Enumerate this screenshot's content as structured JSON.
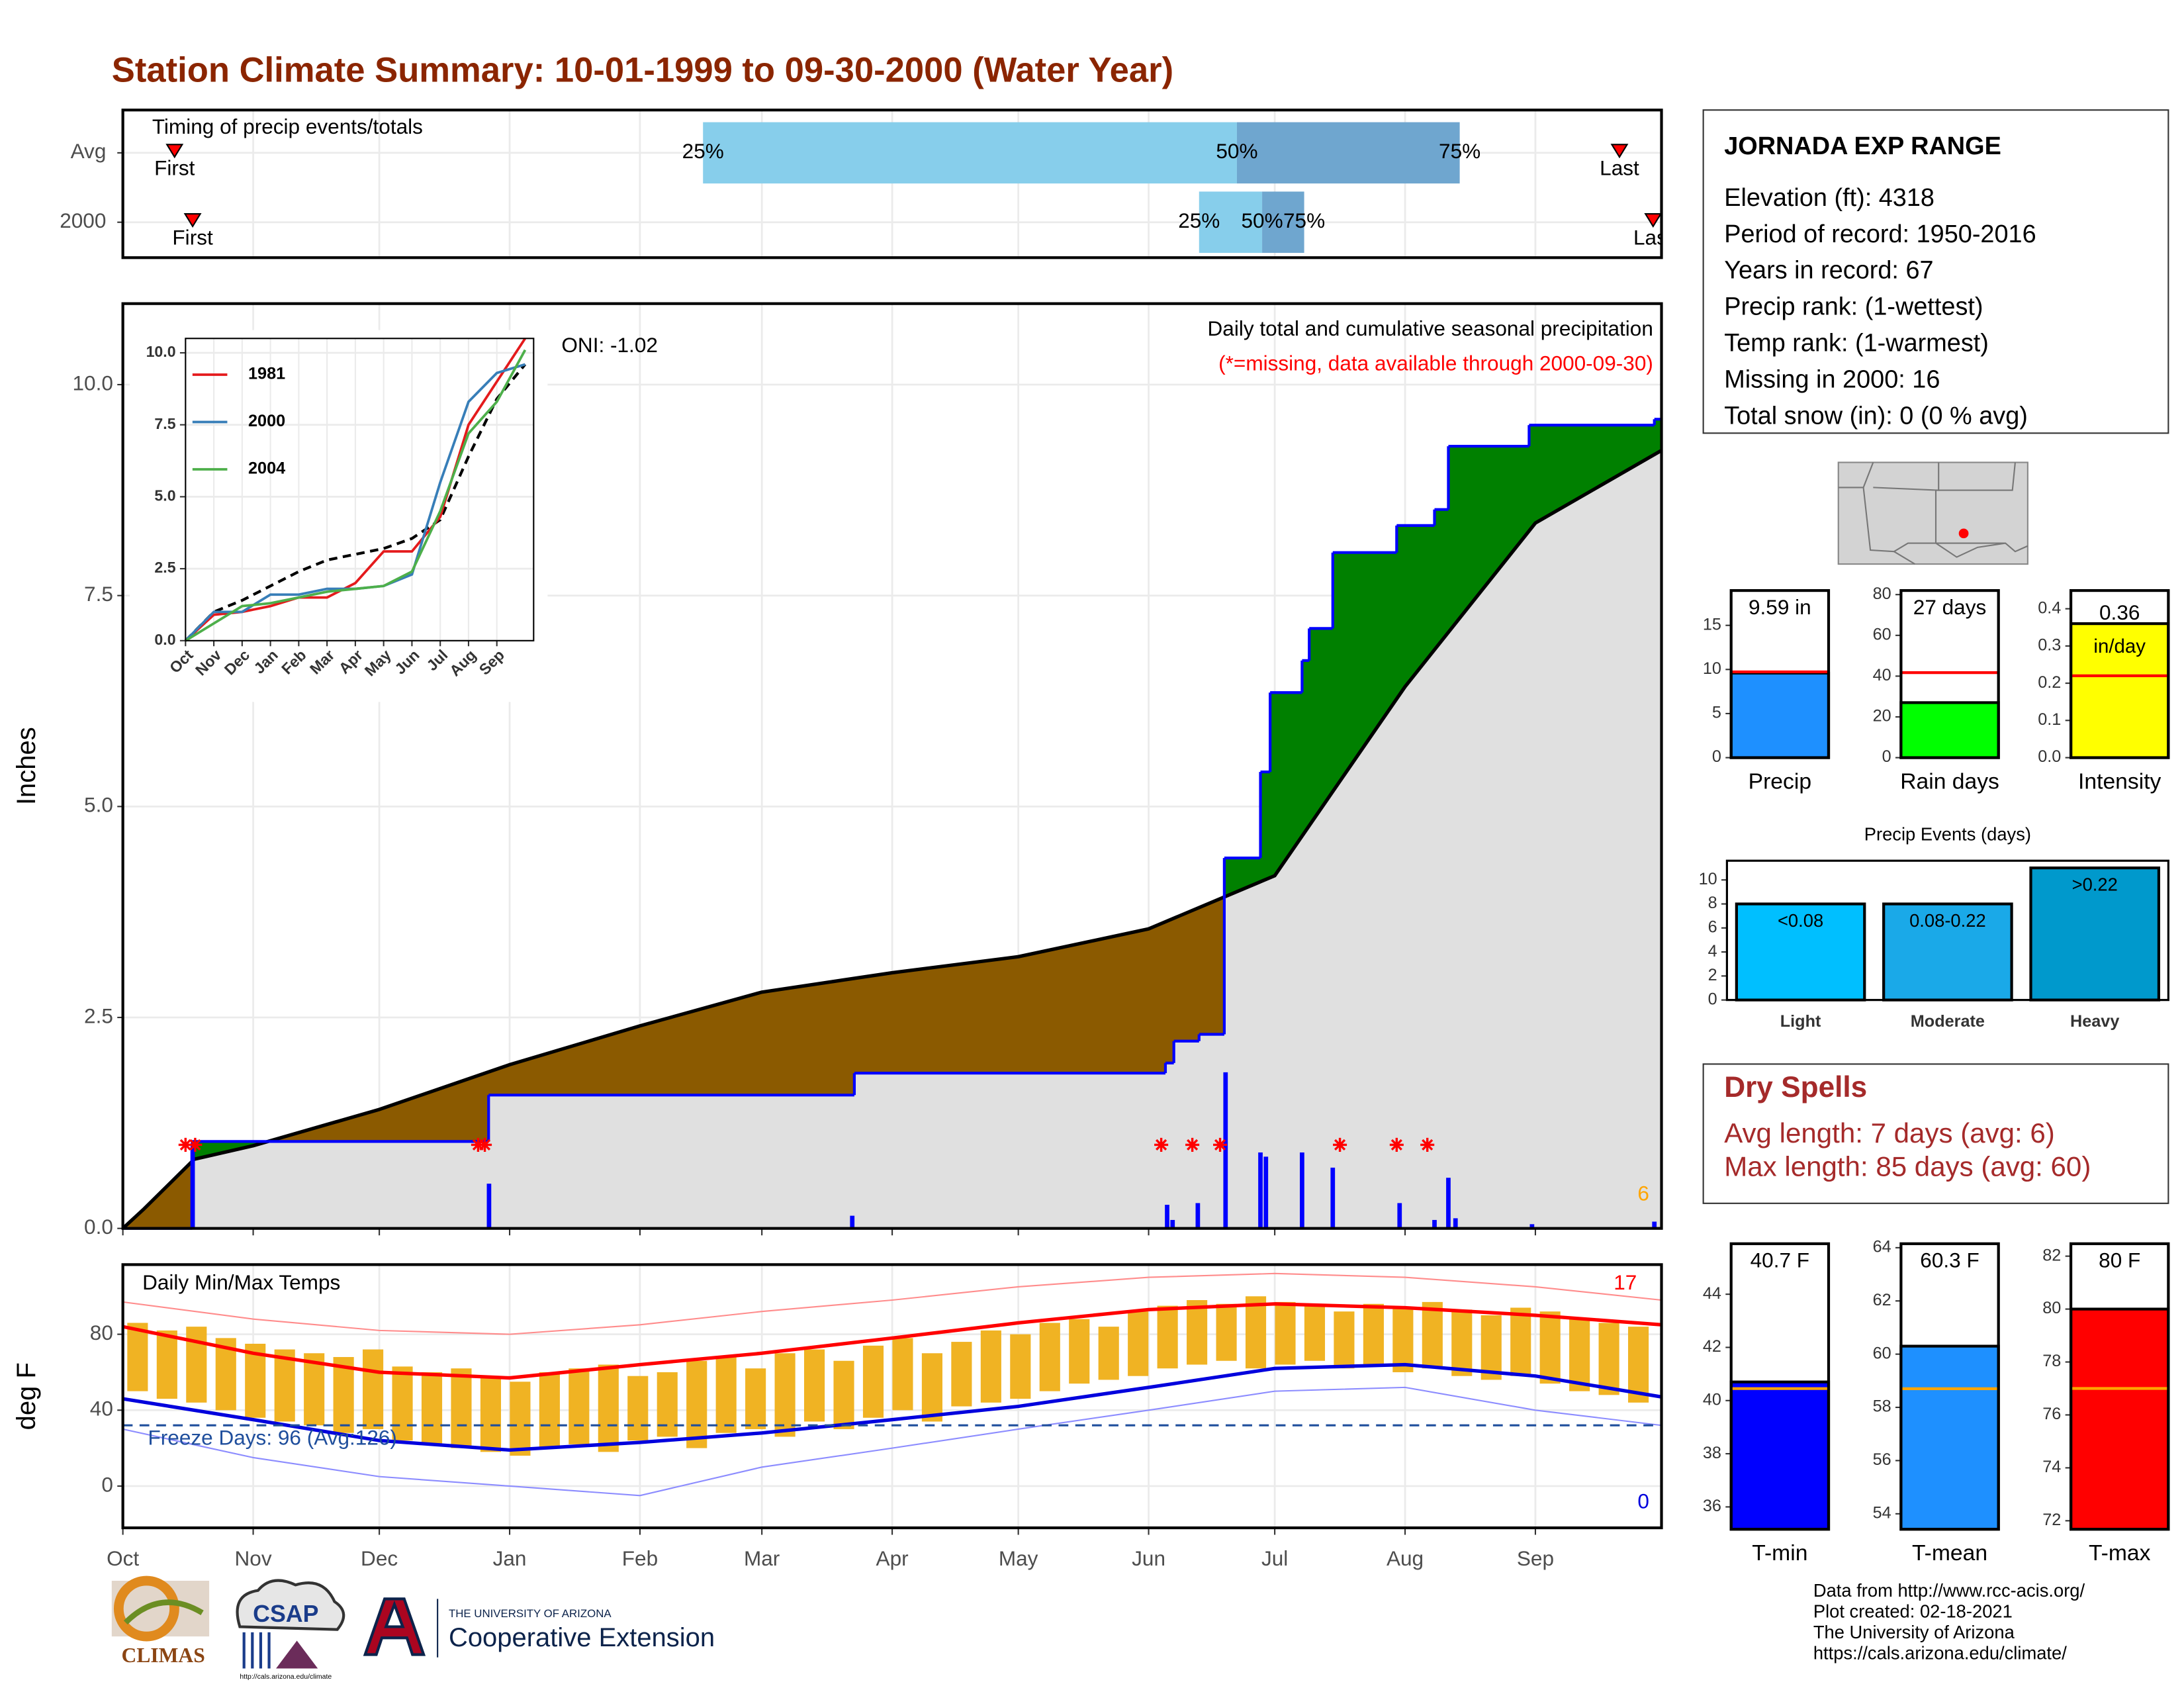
{
  "title": "Station Climate Summary: 10-01-1999 to 09-30-2000 (Water Year)",
  "chart_data": [
    {
      "type": "timing",
      "title": "Timing of precip events/totals",
      "categories": [
        "Avg",
        "2000"
      ],
      "first": [
        12.3,
        16.6
      ],
      "first_label": "First",
      "last": [
        356,
        364
      ],
      "last_label": "Last",
      "q25": [
        138,
        256
      ],
      "q50": [
        265,
        271
      ],
      "q75": [
        318,
        281
      ],
      "quantile_labels": [
        "25%",
        "50%",
        "75%"
      ],
      "colors": [
        "#87ceeb",
        "#6fa6cf"
      ],
      "marker_color": "#ff0000",
      "xlim": [
        0,
        366
      ],
      "xticks": [
        0,
        31,
        61,
        92,
        123,
        152,
        183,
        213,
        244,
        274,
        305,
        336
      ],
      "grid": true
    },
    {
      "type": "precip",
      "title": "Daily total and cumulative seasonal precipitation",
      "subtitle": "(*=missing, data available through 2000-09-30)",
      "annotation": "ONI: -1.02",
      "count_label": 6,
      "ylabel": "Inches",
      "xlim": [
        0,
        366
      ],
      "ylim": [
        0,
        10.96
      ],
      "yticks": [
        {
          "value": 0,
          "label": "0.0"
        },
        {
          "value": 2.5,
          "label": "2.5"
        },
        {
          "value": 5,
          "label": "5.0"
        },
        {
          "value": 7.5,
          "label": "7.5"
        },
        {
          "value": 10,
          "label": "10.0"
        }
      ],
      "xticks": [
        0,
        31,
        61,
        92,
        123,
        152,
        183,
        213,
        244,
        274,
        305,
        336
      ],
      "grid": true,
      "cumulative": {
        "color": "#0000ff",
        "x": [
          0,
          16.5,
          87,
          174,
          248,
          250,
          256,
          262,
          270.6,
          272.9,
          280.5,
          282.2,
          287.8,
          303,
          312,
          315.3,
          334.5,
          364.3
        ],
        "values": [
          0,
          1.03,
          1.58,
          1.84,
          1.96,
          2.22,
          2.3,
          4.39,
          5.41,
          6.35,
          6.73,
          7.11,
          8.01,
          8.33,
          8.52,
          9.27,
          9.52,
          9.59
        ]
      },
      "average": {
        "color": "#000000",
        "x": [
          0,
          5,
          17,
          31,
          61,
          92,
          123,
          152,
          183,
          213,
          244,
          274,
          305,
          336,
          366
        ],
        "values": [
          0,
          0.23,
          0.82,
          0.98,
          1.41,
          1.94,
          2.4,
          2.8,
          3.03,
          3.22,
          3.55,
          4.18,
          6.42,
          8.36,
          9.22
        ]
      },
      "daily": {
        "color": "#0000ff",
        "x": [
          16.6,
          87.1,
          173.5,
          248.4,
          249.7,
          255.7,
          262.3,
          270.6,
          271.9,
          280.5,
          287.8,
          303.7,
          312,
          315.3,
          317,
          335.2,
          364.3
        ],
        "values": [
          0.97,
          0.53,
          0.15,
          0.28,
          0.1,
          0.3,
          1.85,
          0.9,
          0.85,
          0.9,
          0.72,
          0.3,
          0.1,
          0.6,
          0.12,
          0.05,
          0.08
        ]
      },
      "missing_days": [
        14.9,
        17.2,
        84.5,
        86.1,
        247,
        254.4,
        261,
        289.5,
        303,
        310.3
      ],
      "colors": {
        "above": "#008000",
        "below": "#8b5a00",
        "base": "#e0e0e0",
        "missing": "#ff0000",
        "count": "#ffa500"
      }
    },
    {
      "type": "line",
      "x": [
        0,
        1,
        2,
        3,
        4,
        5,
        6,
        7,
        8,
        9,
        10,
        11,
        12
      ],
      "xlim": [
        0,
        12.3
      ],
      "ylim": [
        0,
        10.5
      ],
      "yticks": [
        {
          "value": 0,
          "label": "0.0"
        },
        {
          "value": 2.5,
          "label": "2.5"
        },
        {
          "value": 5,
          "label": "5.0"
        },
        {
          "value": 7.5,
          "label": "7.5"
        },
        {
          "value": 10,
          "label": "10.0"
        }
      ],
      "xticks": [
        {
          "value": 0,
          "label": "Oct"
        },
        {
          "value": 1,
          "label": "Nov"
        },
        {
          "value": 2,
          "label": "Dec"
        },
        {
          "value": 3,
          "label": "Jan"
        },
        {
          "value": 4,
          "label": "Feb"
        },
        {
          "value": 5,
          "label": "Mar"
        },
        {
          "value": 6,
          "label": "Apr"
        },
        {
          "value": 7,
          "label": "May"
        },
        {
          "value": 8,
          "label": "Jun"
        },
        {
          "value": 9,
          "label": "Jul"
        },
        {
          "value": 10,
          "label": "Aug"
        },
        {
          "value": 11,
          "label": "Sep"
        }
      ],
      "series": [
        {
          "name": "1981",
          "color": "#e41a1c",
          "values": [
            0,
            0.9,
            1.0,
            1.2,
            1.5,
            1.5,
            2.0,
            3.1,
            3.1,
            4.3,
            7.5,
            9.0,
            10.5
          ]
        },
        {
          "name": "2000",
          "color": "#377eb8",
          "values": [
            0,
            1.0,
            1.0,
            1.6,
            1.6,
            1.8,
            1.8,
            1.9,
            2.3,
            5.5,
            8.3,
            9.3,
            9.6
          ]
        },
        {
          "name": "2004",
          "color": "#4daf4a",
          "values": [
            0,
            0.6,
            1.2,
            1.3,
            1.5,
            1.7,
            1.8,
            1.9,
            2.4,
            4.5,
            7.2,
            8.3,
            10.1
          ]
        }
      ],
      "average": {
        "color": "#000000",
        "values": [
          0,
          1.0,
          1.4,
          1.9,
          2.4,
          2.8,
          3.0,
          3.2,
          3.55,
          4.2,
          6.4,
          8.4,
          9.6
        ]
      }
    },
    {
      "type": "temps",
      "title": "Daily Min/Max Temps",
      "ylabel": "deg F",
      "xlim": [
        0,
        366
      ],
      "ylim": [
        -22,
        116.7
      ],
      "yticks": [
        0,
        40,
        80
      ],
      "grid": true,
      "xticks": [
        {
          "value": 0,
          "label": "Oct"
        },
        {
          "value": 31,
          "label": "Nov"
        },
        {
          "value": 61,
          "label": "Dec"
        },
        {
          "value": 92,
          "label": "Jan"
        },
        {
          "value": 123,
          "label": "Feb"
        },
        {
          "value": 152,
          "label": "Mar"
        },
        {
          "value": 183,
          "label": "Apr"
        },
        {
          "value": 213,
          "label": "May"
        },
        {
          "value": 244,
          "label": "Jun"
        },
        {
          "value": 274,
          "label": "Jul"
        },
        {
          "value": 305,
          "label": "Aug"
        },
        {
          "value": 336,
          "label": "Sep"
        }
      ],
      "daily": {
        "color": "#f0b323",
        "x": [
          3.5,
          10.5,
          17.5,
          24.5,
          31.5,
          38.5,
          45.5,
          52.5,
          59.5,
          66.5,
          73.5,
          80.5,
          87.5,
          94.5,
          101.5,
          108.5,
          115.5,
          122.5,
          129.5,
          136.5,
          143.5,
          150.5,
          157.5,
          164.5,
          171.5,
          178.5,
          185.5,
          192.5,
          199.5,
          206.5,
          213.5,
          220.5,
          227.5,
          234.5,
          241.5,
          248.5,
          255.5,
          262.5,
          269.5,
          276.5,
          283.5,
          290.5,
          297.5,
          304.5,
          311.5,
          318.5,
          325.5,
          332.5,
          339.5,
          346.5,
          353.5,
          360.5
        ],
        "max": [
          86,
          82,
          84,
          78,
          75,
          72,
          70,
          68,
          72,
          63,
          60,
          62,
          58,
          55,
          60,
          62,
          64,
          58,
          60,
          66,
          68,
          62,
          70,
          72,
          66,
          74,
          78,
          70,
          76,
          82,
          80,
          86,
          88,
          84,
          92,
          95,
          98,
          96,
          100,
          97,
          95,
          92,
          96,
          94,
          97,
          93,
          90,
          94,
          92,
          88,
          86,
          84
        ],
        "min": [
          50,
          46,
          44,
          40,
          36,
          34,
          32,
          28,
          30,
          24,
          22,
          20,
          18,
          16,
          20,
          22,
          18,
          24,
          26,
          20,
          28,
          30,
          26,
          34,
          30,
          36,
          40,
          34,
          42,
          44,
          46,
          50,
          54,
          56,
          58,
          62,
          64,
          66,
          62,
          64,
          66,
          62,
          64,
          60,
          62,
          58,
          56,
          58,
          54,
          50,
          48,
          44
        ]
      },
      "lines_x": [
        0,
        31,
        61,
        92,
        123,
        152,
        183,
        213,
        244,
        274,
        305,
        336,
        366
      ],
      "avg_max": {
        "color": "#ff0000",
        "values": [
          84,
          70,
          60,
          57,
          64,
          70,
          78,
          86,
          93,
          96,
          94,
          90,
          85
        ]
      },
      "avg_min": {
        "color": "#0000dd",
        "values": [
          46,
          35,
          24,
          19,
          23,
          28,
          35,
          42,
          52,
          62,
          64,
          58,
          47
        ]
      },
      "record_max": {
        "color": "#ff8c8c",
        "values": [
          97,
          88,
          82,
          80,
          85,
          92,
          98,
          105,
          110,
          112,
          110,
          105,
          98
        ]
      },
      "record_min": {
        "color": "#8c8cff",
        "values": [
          30,
          15,
          5,
          0,
          -5,
          10,
          20,
          30,
          40,
          50,
          52,
          40,
          32
        ]
      },
      "freeze": {
        "value": 32,
        "label": "Freeze Days: 96 (Avg:126)",
        "color": "#1f4e9c"
      },
      "max_count": 17,
      "min_count": 0,
      "max_count_color": "#ff0000",
      "min_count_color": "#0000dd"
    },
    {
      "type": "bar",
      "categories": [
        "Precip"
      ],
      "values": [
        9.59
      ],
      "value_labels": [
        "9.59 in"
      ],
      "average": 9.73,
      "colors": [
        "#1e90ff"
      ],
      "average_color": "#ff0000",
      "ylim": [
        0,
        18.95
      ],
      "yticks": [
        0,
        5,
        10,
        15
      ]
    },
    {
      "type": "bar",
      "categories": [
        "Rain days"
      ],
      "values": [
        27
      ],
      "value_labels": [
        "27 days"
      ],
      "average": 41.7,
      "colors": [
        "#00ff00"
      ],
      "average_color": "#ff0000",
      "ylim": [
        0,
        82
      ],
      "yticks": [
        0,
        20,
        40,
        60,
        80
      ]
    },
    {
      "type": "bar",
      "categories": [
        "Intensity"
      ],
      "values": [
        0.36
      ],
      "unit": "in/day",
      "average": 0.22,
      "colors": [
        "#ffff00"
      ],
      "average_color": "#ff0000",
      "ylim": [
        0,
        0.449
      ],
      "yticks": [
        {
          "value": 0,
          "label": "0.0"
        },
        0.1,
        0.2,
        0.3,
        0.4
      ]
    },
    {
      "type": "bar",
      "title": "Precip Events (days)",
      "categories": [
        "Light",
        "Moderate",
        "Heavy"
      ],
      "values": [
        8,
        8,
        11
      ],
      "bin_labels": [
        "<0.08",
        "0.08-0.22",
        ">0.22"
      ],
      "colors": [
        "#00bfff",
        "#1aa9e8",
        "#0099cc"
      ],
      "ylim": [
        0,
        11.6
      ],
      "yticks": [
        0,
        2,
        4,
        6,
        8,
        10
      ]
    },
    {
      "type": "bar",
      "categories": [
        "T-min"
      ],
      "values": [
        40.7
      ],
      "value_labels": [
        "40.7 F"
      ],
      "average": 40.45,
      "colors": [
        "#0000ff"
      ],
      "average_color": "#ffa500",
      "ylim": [
        35.16,
        45.9
      ],
      "yticks": [
        36,
        38,
        40,
        42,
        44
      ]
    },
    {
      "type": "bar",
      "categories": [
        "T-mean"
      ],
      "values": [
        60.3
      ],
      "value_labels": [
        "60.3 F"
      ],
      "average": 58.7,
      "colors": [
        "#1e90ff"
      ],
      "average_color": "#ffa500",
      "ylim": [
        53.42,
        64.15
      ],
      "yticks": [
        54,
        56,
        58,
        60,
        62,
        64
      ]
    },
    {
      "type": "bar",
      "categories": [
        "T-max"
      ],
      "values": [
        80
      ],
      "value_labels": [
        "80 F"
      ],
      "average": 77.0,
      "colors": [
        "#ff0000"
      ],
      "average_color": "#ffa500",
      "ylim": [
        71.68,
        82.47
      ],
      "yticks": [
        72,
        74,
        76,
        78,
        80,
        82
      ]
    }
  ],
  "station": {
    "name": "JORNADA EXP RANGE",
    "lines": [
      "Elevation (ft): 4318",
      "Period of record: 1950-2016",
      "Years in record: 67",
      "Precip rank:  (1-wettest)",
      "Temp rank:  (1-warmest)",
      "Missing in 2000: 16",
      "Total snow (in): 0 (0 % avg)"
    ]
  },
  "dry_spells": {
    "title": "Dry Spells",
    "lines": [
      "Avg length: 7 days (avg: 6)",
      "Max length: 85 days (avg: 60)"
    ]
  },
  "footer": {
    "lines": [
      "Data from http://www.rcc-acis.org/",
      "Plot created: 02-18-2021",
      "The University of Arizona",
      "https://cals.arizona.edu/climate/"
    ]
  },
  "logos": {
    "climas": "CLIMAS",
    "csap": "CSAP",
    "csap_url": "http://cals.arizona.edu/climate",
    "ua": "THE UNIVERSITY OF ARIZONA",
    "extension": "Cooperative Extension"
  }
}
